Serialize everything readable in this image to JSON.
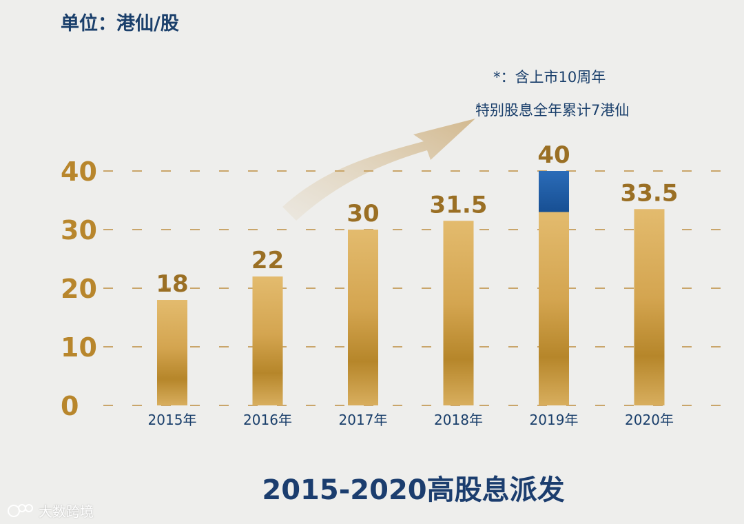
{
  "unit_label": "单位：港仙/股",
  "note": {
    "line1": "*：含上市10周年",
    "line2": "特别股息全年累计7港仙"
  },
  "watermark": "大数跨境",
  "colors": {
    "bar": "#c1912e",
    "bar_light": "#e2b96a",
    "special": "#1e5fa8",
    "tick": "#b8862c",
    "category": "#1a3f6b",
    "title": "#1b3d6e"
  },
  "chart_data": {
    "type": "bar",
    "title": "2015-2020高股息派发",
    "categories": [
      "2015年",
      "2016年",
      "2017年",
      "2018年",
      "2019年",
      "2020年"
    ],
    "series": [
      {
        "values": [
          18,
          22,
          30,
          31.5,
          33,
          33.5
        ]
      },
      {
        "values": [
          0,
          0,
          0,
          0,
          7,
          0
        ]
      }
    ],
    "data_labels": [
      "18",
      "22",
      "30",
      "31.5",
      "40",
      "33.5"
    ],
    "ylim": [
      0,
      40
    ],
    "yticks": [
      0,
      10,
      20,
      30,
      40
    ],
    "grid": true,
    "stacked": true
  }
}
